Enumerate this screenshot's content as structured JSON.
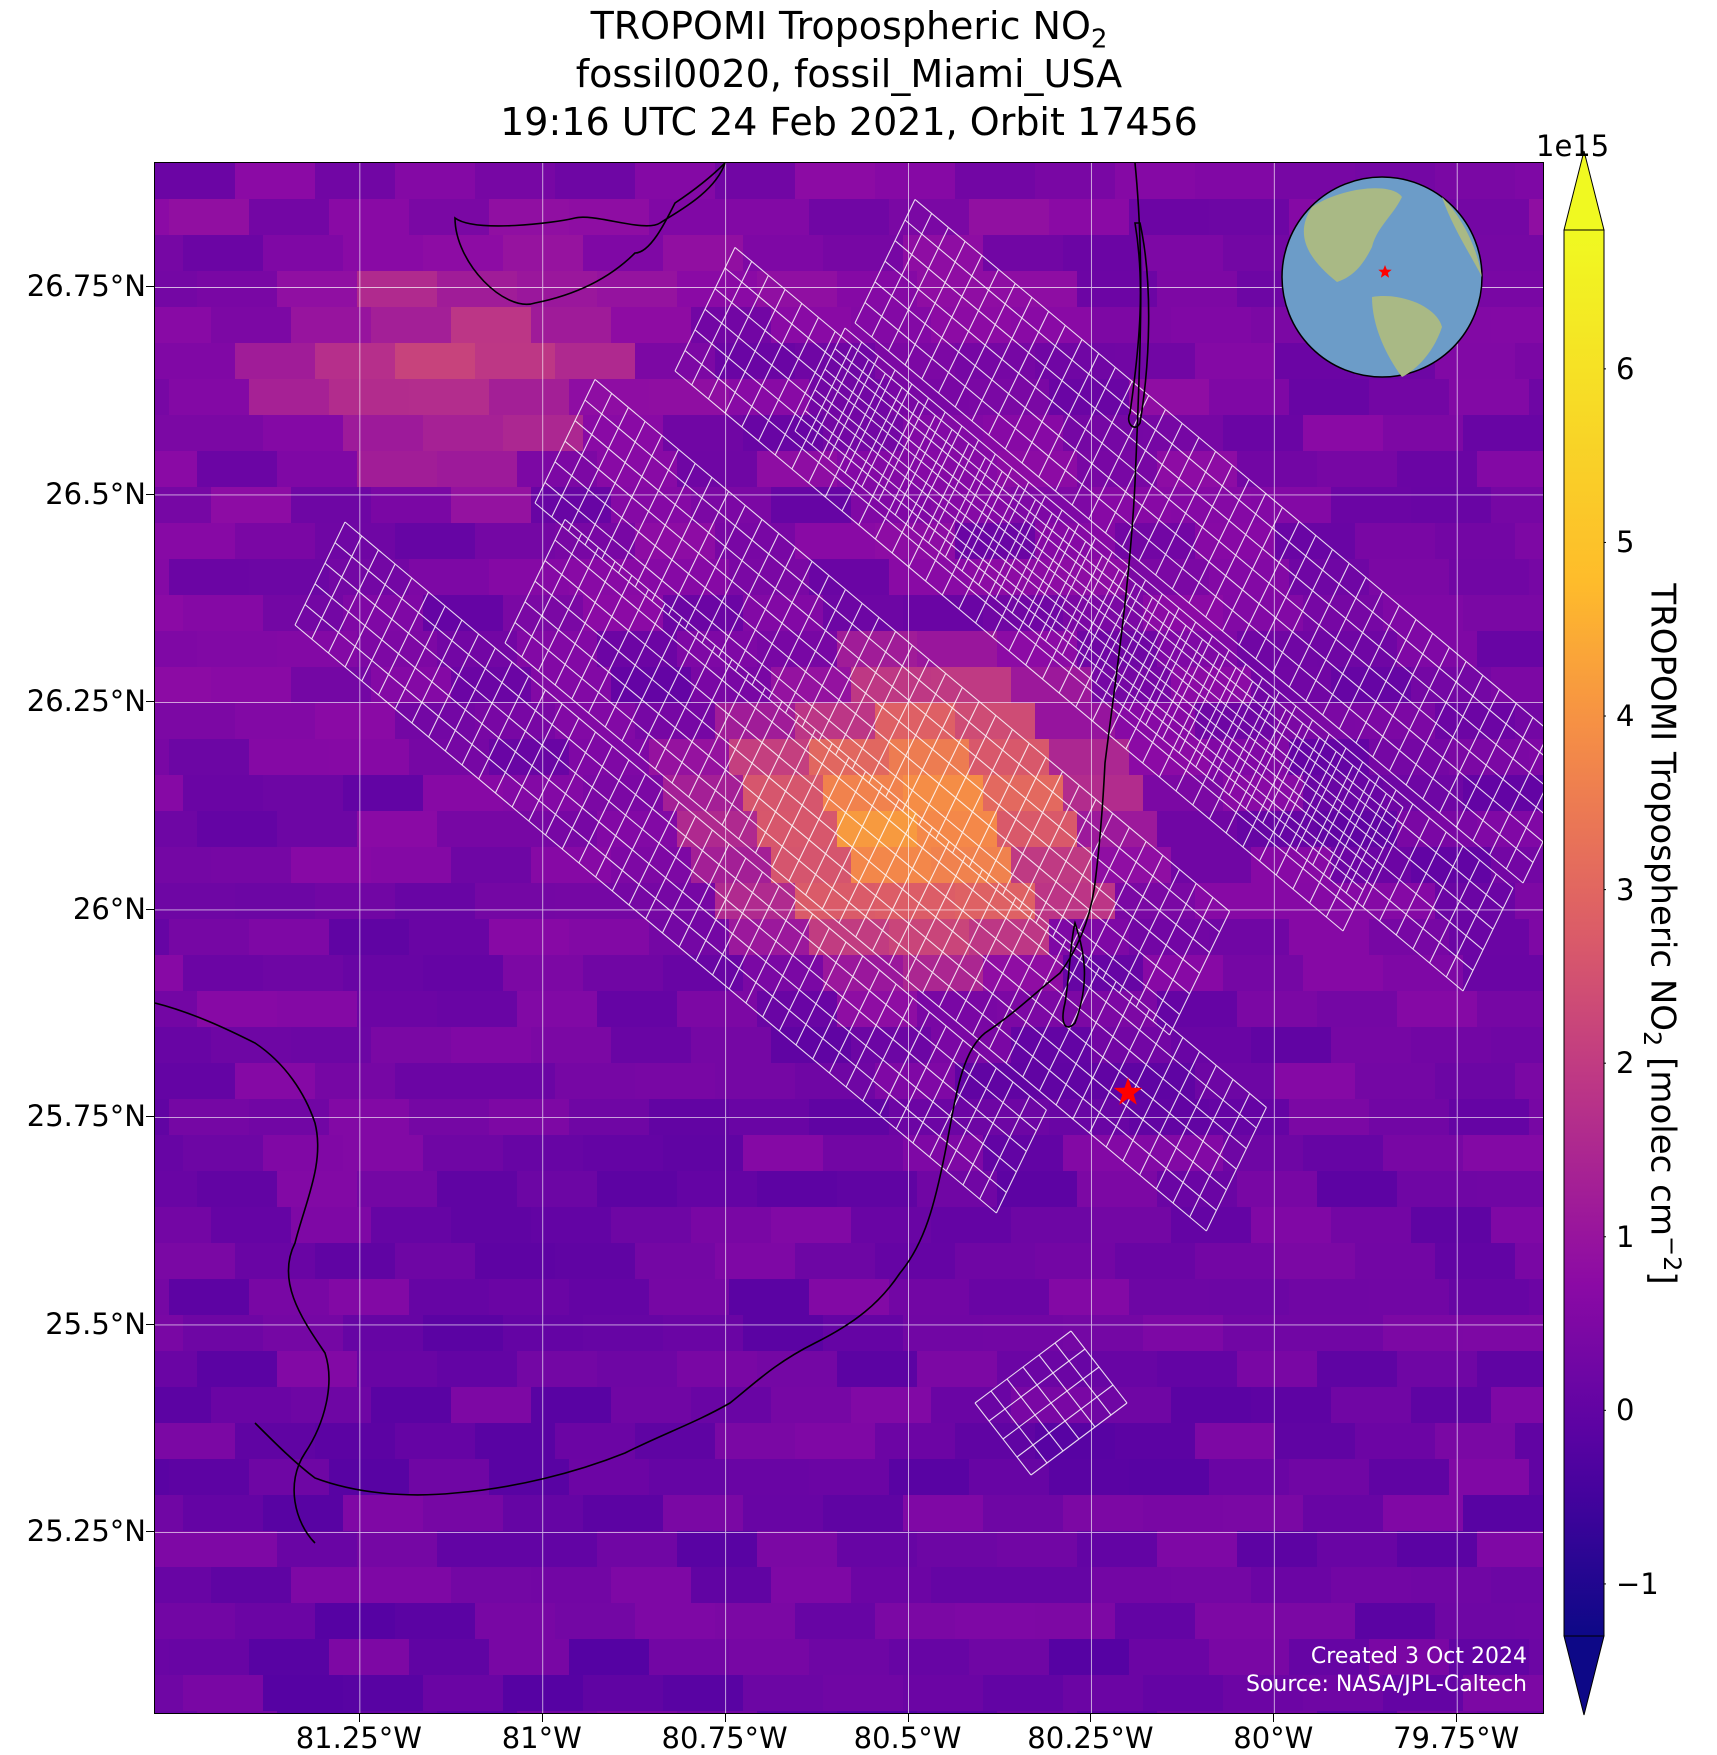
{
  "title": {
    "line1": "TROPOMI Tropospheric NO",
    "line1_sub": "2",
    "line2": "fossil0020, fossil_Miami_USA",
    "line3": "19:16 UTC 24 Feb 2021, Orbit 17456"
  },
  "map": {
    "lon_range": [
      -81.53,
      -79.63
    ],
    "lat_range": [
      25.03,
      26.9
    ],
    "lat_ticks": [
      {
        "value": 26.75,
        "label": "26.75°N"
      },
      {
        "value": 26.5,
        "label": "26.5°N"
      },
      {
        "value": 26.25,
        "label": "26.25°N"
      },
      {
        "value": 26.0,
        "label": "26°N"
      },
      {
        "value": 25.75,
        "label": "25.75°N"
      },
      {
        "value": 25.5,
        "label": "25.5°N"
      },
      {
        "value": 25.25,
        "label": "25.25°N"
      }
    ],
    "lon_ticks": [
      {
        "value": -81.25,
        "label": "81.25°W"
      },
      {
        "value": -81.0,
        "label": "81°W"
      },
      {
        "value": -80.75,
        "label": "80.75°W"
      },
      {
        "value": -80.5,
        "label": "80.5°W"
      },
      {
        "value": -80.25,
        "label": "80.25°W"
      },
      {
        "value": -80.0,
        "label": "80°W"
      },
      {
        "value": -79.75,
        "label": "79.75°W"
      }
    ],
    "target_marker": {
      "lon": -80.2,
      "lat": 25.78,
      "color": "#ff0000"
    },
    "inset_globe": {
      "center_lon": -80.2,
      "center_lat": 25.78
    },
    "grid": true,
    "background_colormap": "plasma",
    "footprint_outline_color": "#ffffff"
  },
  "credit": {
    "line1": "Created 3 Oct 2024",
    "line2": "Source: NASA/JPL-Caltech"
  },
  "colorbar": {
    "multiplier": "1e15",
    "range": [
      -1.3,
      6.8
    ],
    "ticks": [
      {
        "value": -1,
        "label": "−1"
      },
      {
        "value": 0,
        "label": "0"
      },
      {
        "value": 1,
        "label": "1"
      },
      {
        "value": 2,
        "label": "2"
      },
      {
        "value": 3,
        "label": "3"
      },
      {
        "value": 4,
        "label": "4"
      },
      {
        "value": 5,
        "label": "5"
      },
      {
        "value": 6,
        "label": "6"
      }
    ],
    "label_main": "TROPOMI Tropospheric NO",
    "label_sub": "2",
    "label_units": " [molec cm",
    "label_sup": "−2",
    "label_close": "]",
    "colormap": "plasma"
  }
}
